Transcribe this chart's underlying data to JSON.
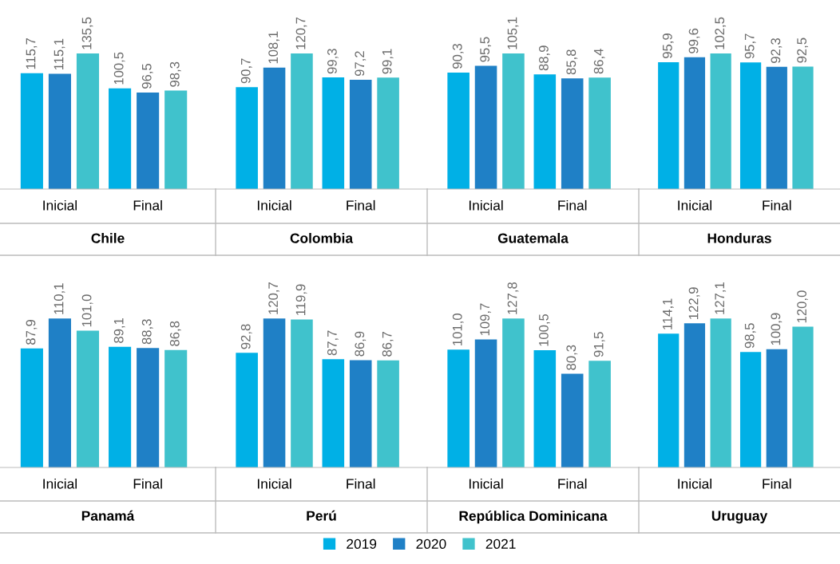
{
  "chart_data": [
    {
      "type": "bar",
      "xlabel": "Chile",
      "categories": [
        "Inicial",
        "Final"
      ],
      "tick_labels": "x",
      "legend": "bottom",
      "series": [
        {
          "name": "2019",
          "color": "#00b0e6",
          "values": [
            115.7,
            100.5
          ],
          "value_labels": [
            "115,7",
            "100,5"
          ]
        },
        {
          "name": "2020",
          "color": "#1f80c6",
          "values": [
            115.1,
            96.5
          ],
          "value_labels": [
            "115,1",
            "96,5"
          ]
        },
        {
          "name": "2021",
          "color": "#40c2cc",
          "values": [
            135.5,
            98.3
          ],
          "value_labels": [
            "135,5",
            "98,3"
          ]
        }
      ]
    },
    {
      "type": "bar",
      "xlabel": "Colombia",
      "categories": [
        "Inicial",
        "Final"
      ],
      "tick_labels": "x",
      "series": [
        {
          "name": "2019",
          "color": "#00b0e6",
          "values": [
            90.7,
            99.3
          ],
          "value_labels": [
            "90,7",
            "99,3"
          ]
        },
        {
          "name": "2020",
          "color": "#1f80c6",
          "values": [
            108.1,
            97.2
          ],
          "value_labels": [
            "108,1",
            "97,2"
          ]
        },
        {
          "name": "2021",
          "color": "#40c2cc",
          "values": [
            120.7,
            99.1
          ],
          "value_labels": [
            "120,7",
            "99,1"
          ]
        }
      ]
    },
    {
      "type": "bar",
      "xlabel": "Guatemala",
      "categories": [
        "Inicial",
        "Final"
      ],
      "tick_labels": "x",
      "series": [
        {
          "name": "2019",
          "color": "#00b0e6",
          "values": [
            90.3,
            88.9
          ],
          "value_labels": [
            "90,3",
            "88,9"
          ]
        },
        {
          "name": "2020",
          "color": "#1f80c6",
          "values": [
            95.5,
            85.8
          ],
          "value_labels": [
            "95,5",
            "85,8"
          ]
        },
        {
          "name": "2021",
          "color": "#40c2cc",
          "values": [
            105.1,
            86.4
          ],
          "value_labels": [
            "105,1",
            "86,4"
          ]
        }
      ]
    },
    {
      "type": "bar",
      "xlabel": "Honduras",
      "categories": [
        "Inicial",
        "Final"
      ],
      "tick_labels": "x",
      "series": [
        {
          "name": "2019",
          "color": "#00b0e6",
          "values": [
            95.9,
            95.7
          ],
          "value_labels": [
            "95,9",
            "95,7"
          ]
        },
        {
          "name": "2020",
          "color": "#1f80c6",
          "values": [
            99.6,
            92.3
          ],
          "value_labels": [
            "99,6",
            "92,3"
          ]
        },
        {
          "name": "2021",
          "color": "#40c2cc",
          "values": [
            102.5,
            92.5
          ],
          "value_labels": [
            "102,5",
            "92,5"
          ]
        }
      ]
    },
    {
      "type": "bar",
      "xlabel": "Panamá",
      "categories": [
        "Inicial",
        "Final"
      ],
      "tick_labels": "x",
      "series": [
        {
          "name": "2019",
          "color": "#00b0e6",
          "values": [
            87.9,
            89.1
          ],
          "value_labels": [
            "87,9",
            "89,1"
          ]
        },
        {
          "name": "2020",
          "color": "#1f80c6",
          "values": [
            110.1,
            88.3
          ],
          "value_labels": [
            "110,1",
            "88,3"
          ]
        },
        {
          "name": "2021",
          "color": "#40c2cc",
          "values": [
            101.0,
            86.8
          ],
          "value_labels": [
            "101,0",
            "86,8"
          ]
        }
      ]
    },
    {
      "type": "bar",
      "xlabel": "Perú",
      "categories": [
        "Inicial",
        "Final"
      ],
      "tick_labels": "x",
      "series": [
        {
          "name": "2019",
          "color": "#00b0e6",
          "values": [
            92.8,
            87.7
          ],
          "value_labels": [
            "92,8",
            "87,7"
          ]
        },
        {
          "name": "2020",
          "color": "#1f80c6",
          "values": [
            120.7,
            86.9
          ],
          "value_labels": [
            "120,7",
            "86,9"
          ]
        },
        {
          "name": "2021",
          "color": "#40c2cc",
          "values": [
            119.9,
            86.7
          ],
          "value_labels": [
            "119,9",
            "86,7"
          ]
        }
      ]
    },
    {
      "type": "bar",
      "xlabel": "República Dominicana",
      "categories": [
        "Inicial",
        "Final"
      ],
      "tick_labels": "x",
      "series": [
        {
          "name": "2019",
          "color": "#00b0e6",
          "values": [
            101.0,
            100.5
          ],
          "value_labels": [
            "101,0",
            "100,5"
          ]
        },
        {
          "name": "2020",
          "color": "#1f80c6",
          "values": [
            109.7,
            80.3
          ],
          "value_labels": [
            "109,7",
            "80,3"
          ]
        },
        {
          "name": "2021",
          "color": "#40c2cc",
          "values": [
            127.8,
            91.5
          ],
          "value_labels": [
            "127,8",
            "91,5"
          ]
        }
      ]
    },
    {
      "type": "bar",
      "xlabel": "Uruguay",
      "categories": [
        "Inicial",
        "Final"
      ],
      "tick_labels": "x",
      "legend": "bottom",
      "series": [
        {
          "name": "2019",
          "color": "#00b0e6",
          "values": [
            114.1,
            98.5
          ],
          "value_labels": [
            "114,1",
            "98,5"
          ]
        },
        {
          "name": "2020",
          "color": "#1f80c6",
          "values": [
            122.9,
            100.9
          ],
          "value_labels": [
            "122,9",
            "100,9"
          ]
        },
        {
          "name": "2021",
          "color": "#40c2cc",
          "values": [
            127.1,
            120.0
          ],
          "value_labels": [
            "127,1",
            "120,0"
          ]
        }
      ]
    }
  ]
}
